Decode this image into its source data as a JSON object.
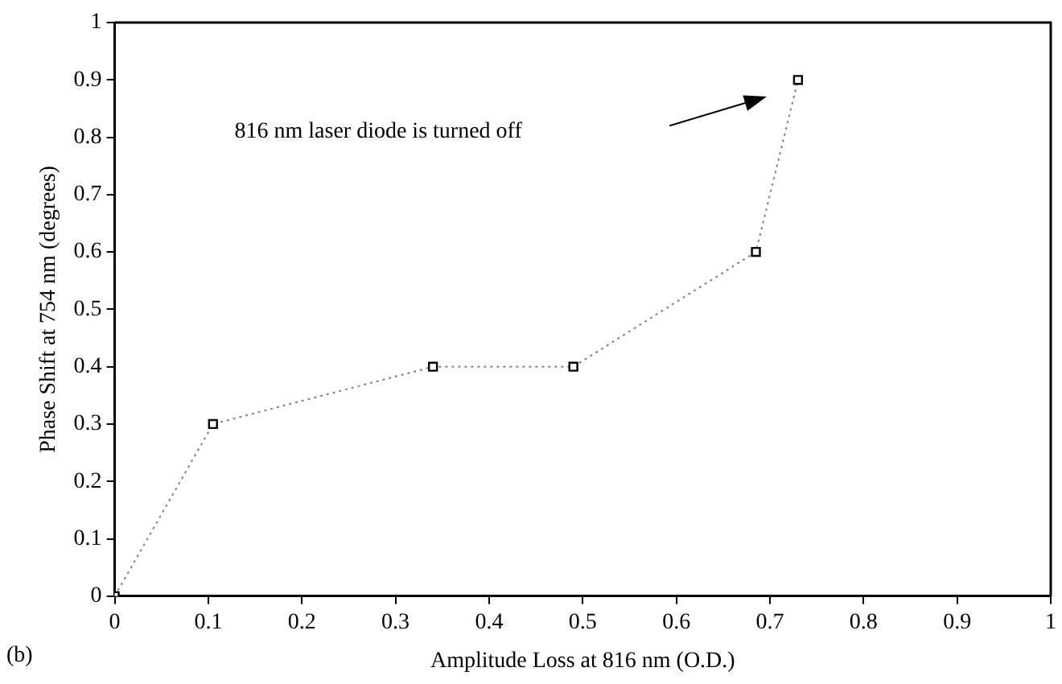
{
  "chart_data": {
    "type": "line",
    "xlabel": "Amplitude Loss at 816 nm (O.D.)",
    "ylabel": "Phase Shift at 754 nm (degrees)",
    "x": [
      0,
      0.105,
      0.34,
      0.49,
      0.685,
      0.73
    ],
    "series": [
      {
        "color": "#808080",
        "values": [
          0,
          0.3,
          0.4,
          0.4,
          0.6,
          0.9
        ]
      }
    ],
    "xlim": [
      0,
      1
    ],
    "xticks": [
      0,
      0.1,
      0.2,
      0.3,
      0.4,
      0.5,
      0.6,
      0.7,
      0.8,
      0.9,
      1
    ],
    "ylim": [
      0,
      1
    ],
    "yticks": [
      0,
      0.1,
      0.2,
      0.3,
      0.4,
      0.5,
      0.6,
      0.7,
      0.8,
      0.9,
      1
    ],
    "grid": false,
    "legend": false,
    "marker": "square",
    "line_style": "dotted",
    "annotations": [
      "816 nm laser diode is turned off",
      "(b)"
    ]
  }
}
